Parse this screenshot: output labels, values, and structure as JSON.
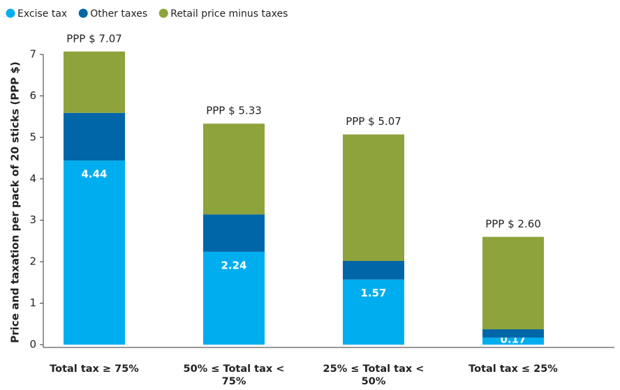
{
  "chart_data": {
    "type": "stacked_bar",
    "y_label": "Price and taxation per pack of 20 sticks (PPP $)",
    "categories": [
      "Total tax ≥ 75%",
      "50% ≤ Total tax < 75%",
      "25% ≤ Total tax < 50%",
      "Total tax ≤ 25%"
    ],
    "series": [
      {
        "name": "Excise tax",
        "color": "#00aeef",
        "values": [
          4.44,
          2.24,
          1.57,
          0.17
        ]
      },
      {
        "name": "Other taxes",
        "color": "#0066a8",
        "values": [
          1.15,
          0.9,
          0.45,
          0.2
        ]
      },
      {
        "name": "Retail price minus taxes",
        "color": "#8ea33b",
        "values": [
          1.48,
          2.19,
          3.05,
          2.23
        ]
      }
    ],
    "annotations": [
      "PPP $ 7.07",
      "PPP $ 5.33",
      "PPP $ 5.07",
      "PPP $ 2.60"
    ],
    "ylim": [
      0,
      7
    ],
    "yticks": [
      0,
      1,
      2,
      3,
      4,
      5,
      6,
      7
    ],
    "legend": "top-left"
  }
}
